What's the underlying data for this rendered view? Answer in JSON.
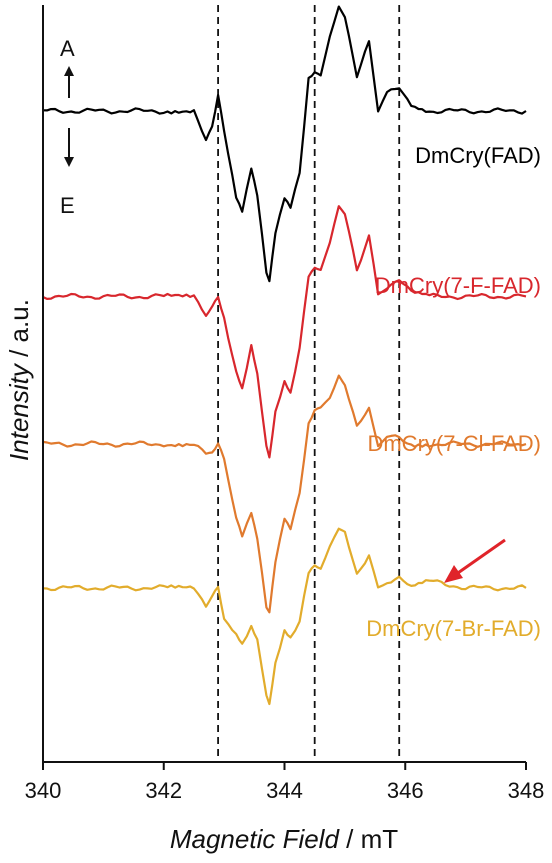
{
  "chart_data": {
    "type": "line",
    "xlabel_italic": "Magnetic Field",
    "xlabel_unit": " / mT",
    "ylabel_italic": "Intensity",
    "ylabel_unit": " / a.u.",
    "xlim": [
      340,
      348
    ],
    "x_ticks": [
      "340",
      "342",
      "344",
      "346",
      "348"
    ],
    "dashed_lines": [
      342.9,
      344.5,
      345.9
    ],
    "emission_absorption": {
      "up": "A",
      "down": "E"
    },
    "series": [
      {
        "name": "DmCry(FAD)",
        "color": "#000000",
        "baseline": 0.86,
        "x": [
          340.0,
          341.0,
          342.0,
          342.5,
          342.7,
          342.8,
          342.9,
          343.0,
          343.2,
          343.3,
          343.45,
          343.55,
          343.7,
          343.75,
          343.85,
          344.0,
          344.1,
          344.25,
          344.4,
          344.5,
          344.6,
          344.75,
          344.9,
          345.0,
          345.2,
          345.4,
          345.55,
          345.7,
          345.9,
          346.1,
          346.4,
          347.0,
          348.0
        ],
        "y": [
          0.0,
          0.0,
          0.0,
          0.0,
          -0.09,
          -0.04,
          0.05,
          -0.06,
          -0.26,
          -0.3,
          -0.17,
          -0.25,
          -0.47,
          -0.5,
          -0.36,
          -0.26,
          -0.29,
          -0.18,
          0.1,
          0.12,
          0.1,
          0.22,
          0.3,
          0.28,
          0.1,
          0.2,
          0.0,
          0.05,
          0.07,
          0.02,
          0.0,
          0.0,
          0.0
        ]
      },
      {
        "name": "DmCry(7-F-FAD)",
        "color": "#d8272d",
        "baseline": 0.615,
        "x": [
          340.0,
          341.0,
          342.0,
          342.5,
          342.7,
          342.8,
          342.9,
          343.0,
          343.2,
          343.3,
          343.45,
          343.55,
          343.7,
          343.75,
          343.85,
          344.0,
          344.1,
          344.25,
          344.4,
          344.5,
          344.6,
          344.75,
          344.9,
          345.0,
          345.2,
          345.4,
          345.55,
          345.7,
          345.9,
          346.1,
          346.4,
          347.0,
          348.0
        ],
        "y": [
          0.0,
          0.0,
          0.0,
          0.0,
          -0.05,
          -0.03,
          0.0,
          -0.06,
          -0.22,
          -0.27,
          -0.14,
          -0.22,
          -0.44,
          -0.47,
          -0.34,
          -0.25,
          -0.28,
          -0.15,
          0.06,
          0.08,
          0.08,
          0.15,
          0.27,
          0.24,
          0.08,
          0.18,
          0.0,
          0.03,
          0.05,
          0.01,
          0.0,
          0.0,
          0.0
        ]
      },
      {
        "name": "DmCry(7-Cl-FAD)",
        "color": "#e07a2e",
        "baseline": 0.42,
        "x": [
          340.0,
          341.0,
          342.0,
          342.5,
          342.7,
          342.8,
          342.9,
          343.0,
          343.2,
          343.3,
          343.45,
          343.55,
          343.7,
          343.75,
          343.85,
          344.0,
          344.1,
          344.25,
          344.4,
          344.5,
          344.6,
          344.75,
          344.9,
          345.0,
          345.2,
          345.4,
          345.55,
          345.7,
          345.9,
          346.1,
          346.4,
          347.0,
          348.0
        ],
        "y": [
          0.0,
          0.0,
          0.0,
          0.0,
          -0.03,
          -0.02,
          0.0,
          -0.05,
          -0.22,
          -0.27,
          -0.2,
          -0.28,
          -0.48,
          -0.5,
          -0.35,
          -0.22,
          -0.25,
          -0.14,
          0.06,
          0.1,
          0.1,
          0.14,
          0.2,
          0.18,
          0.05,
          0.1,
          0.0,
          0.02,
          0.02,
          0.0,
          0.0,
          0.0,
          0.0
        ]
      },
      {
        "name": "DmCry(7-Br-FAD)",
        "color": "#e2ac2c",
        "baseline": 0.23,
        "x": [
          340.0,
          341.0,
          342.0,
          342.5,
          342.7,
          342.8,
          342.9,
          343.0,
          343.2,
          343.3,
          343.45,
          343.55,
          343.7,
          343.75,
          343.85,
          344.0,
          344.1,
          344.25,
          344.4,
          344.5,
          344.6,
          344.75,
          344.9,
          345.0,
          345.2,
          345.4,
          345.55,
          345.7,
          345.9,
          346.1,
          346.4,
          347.0,
          348.0
        ],
        "y": [
          0.0,
          0.0,
          0.0,
          0.0,
          -0.05,
          -0.03,
          0.0,
          -0.09,
          -0.13,
          -0.16,
          -0.11,
          -0.15,
          -0.32,
          -0.34,
          -0.22,
          -0.12,
          -0.14,
          -0.1,
          0.04,
          0.06,
          0.06,
          0.12,
          0.18,
          0.16,
          0.04,
          0.1,
          0.0,
          0.02,
          0.03,
          0.0,
          0.02,
          0.0,
          0.0
        ]
      }
    ],
    "arrow_annotation": {
      "color": "#e0242a",
      "points_to_x": 346.6
    }
  }
}
